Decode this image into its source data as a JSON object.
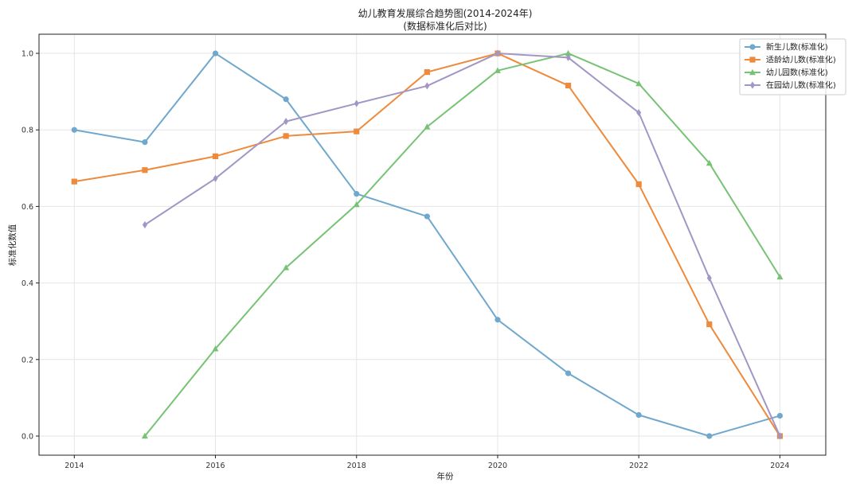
{
  "chart_data": {
    "type": "line",
    "title": "幼儿教育发展综合趋势图(2014-2024年)",
    "subtitle": "(数据标准化后对比)",
    "xlabel": "年份",
    "ylabel": "标准化数值",
    "x": [
      2014,
      2015,
      2016,
      2017,
      2018,
      2019,
      2020,
      2021,
      2022,
      2023,
      2024
    ],
    "xticks": [
      2014,
      2016,
      2018,
      2020,
      2022,
      2024
    ],
    "yticks": [
      0.0,
      0.2,
      0.4,
      0.6,
      0.8,
      1.0
    ],
    "xlim": [
      2013.5,
      2024.65
    ],
    "ylim": [
      -0.05,
      1.05
    ],
    "grid": true,
    "legend_position": "top-right",
    "series": [
      {
        "name": "新生儿数(标准化)",
        "color": "#6fa8cc",
        "marker": "circle",
        "values": [
          0.8,
          0.768,
          1.0,
          0.88,
          0.633,
          0.574,
          0.304,
          0.164,
          0.055,
          0.0,
          0.053
        ]
      },
      {
        "name": "适龄幼儿数(标准化)",
        "color": "#ee8a3c",
        "marker": "square",
        "values": [
          0.665,
          0.695,
          0.731,
          0.784,
          0.796,
          0.951,
          1.0,
          0.916,
          0.658,
          0.292,
          0.0
        ]
      },
      {
        "name": "幼儿园数(标准化)",
        "color": "#77c375",
        "marker": "triangle",
        "values": [
          null,
          0.0,
          0.228,
          0.44,
          0.605,
          0.808,
          0.955,
          1.0,
          0.921,
          0.713,
          0.416
        ]
      },
      {
        "name": "在园幼儿数(标准化)",
        "color": "#a296c6",
        "marker": "diamond",
        "values": [
          null,
          0.552,
          0.673,
          0.822,
          0.869,
          0.915,
          1.0,
          0.989,
          0.845,
          0.413,
          0.0
        ]
      }
    ]
  }
}
